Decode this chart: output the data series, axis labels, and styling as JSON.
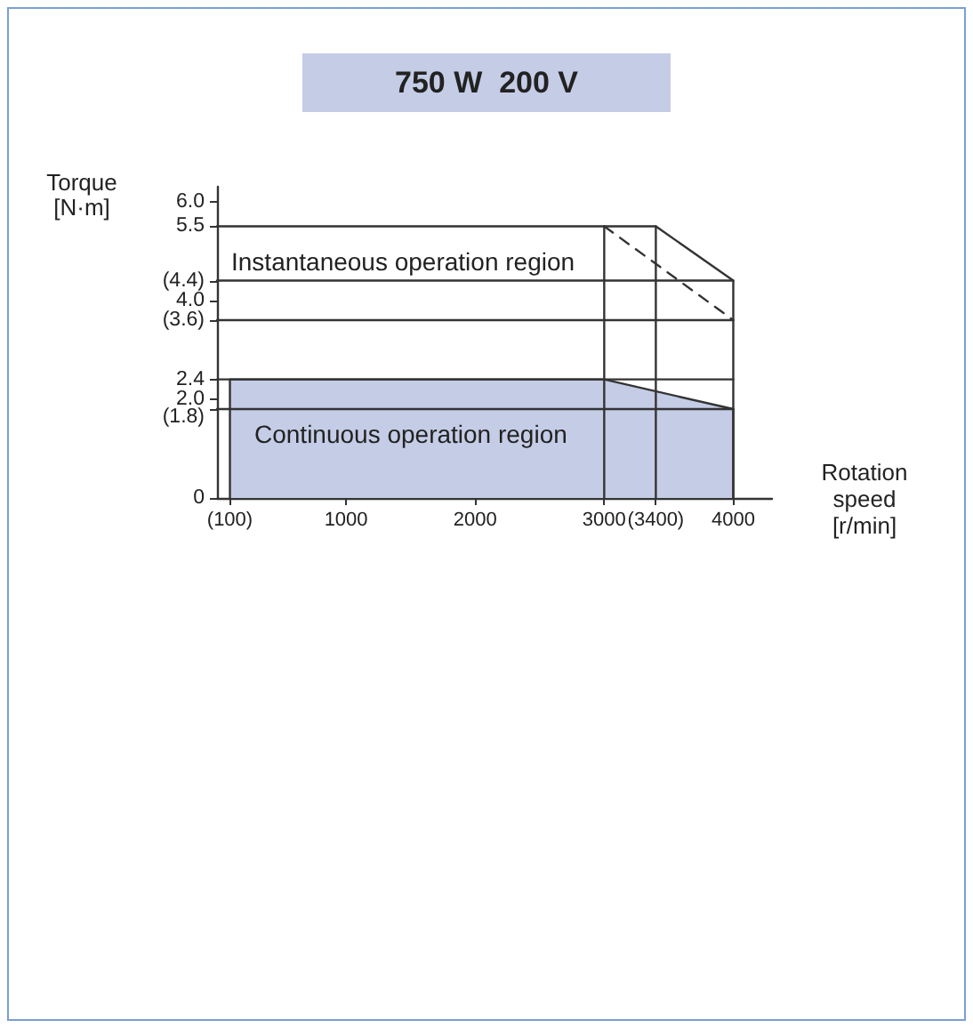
{
  "chart_data": {
    "type": "line",
    "title": "750 W  200 V",
    "xlabel": "Rotation\nspeed\n[r/min]",
    "ylabel": "Torque\n[N·m]",
    "xlim": [
      0,
      4300
    ],
    "ylim": [
      0,
      6.3
    ],
    "xticks": [
      {
        "value": 100,
        "label": "(100)"
      },
      1000,
      2000,
      3000,
      {
        "value": 3400,
        "label": "(3400)"
      },
      4000
    ],
    "yticks": [
      {
        "value": 0,
        "label": "0"
      },
      {
        "value": 1.8,
        "label": "(1.8)"
      },
      {
        "value": 2.0,
        "label": "2.0"
      },
      2.4,
      {
        "value": 3.6,
        "label": "(3.6)"
      },
      {
        "value": 4.0,
        "label": "4.0"
      },
      {
        "value": 4.4,
        "label": "(4.4)"
      },
      5.5,
      {
        "value": 6.0,
        "label": "6.0"
      }
    ],
    "grid": false,
    "marker": "none",
    "series": [
      {
        "type": "area",
        "color": "#c5cce6",
        "x": [
          100,
          100,
          3000,
          4000,
          4000
        ],
        "values": [
          0,
          2.4,
          2.4,
          1.8,
          0
        ]
      },
      {
        "color": "#333333",
        "x": [
          0,
          3400,
          4000,
          4000
        ],
        "values": [
          5.5,
          5.5,
          4.4,
          0
        ]
      },
      {
        "color": "#333333",
        "line_style": "dashed",
        "x": [
          3000,
          4000
        ],
        "values": [
          5.5,
          3.6
        ]
      },
      {
        "color": "#333333",
        "x": [
          0,
          4000
        ],
        "values": [
          4.4,
          4.4
        ]
      },
      {
        "color": "#333333",
        "x": [
          0,
          4000
        ],
        "values": [
          3.6,
          3.6
        ]
      },
      {
        "color": "#333333",
        "x": [
          0,
          4000
        ],
        "values": [
          2.4,
          2.4
        ]
      },
      {
        "color": "#333333",
        "x": [
          0,
          4000
        ],
        "values": [
          1.8,
          1.8
        ]
      },
      {
        "color": "#333333",
        "x": [
          3000,
          3000
        ],
        "values": [
          0,
          5.5
        ]
      },
      {
        "color": "#333333",
        "x": [
          3400,
          3400
        ],
        "values": [
          0,
          5.5
        ]
      }
    ],
    "annotations": [
      "Instantaneous operation region",
      "Continuous operation region"
    ]
  }
}
